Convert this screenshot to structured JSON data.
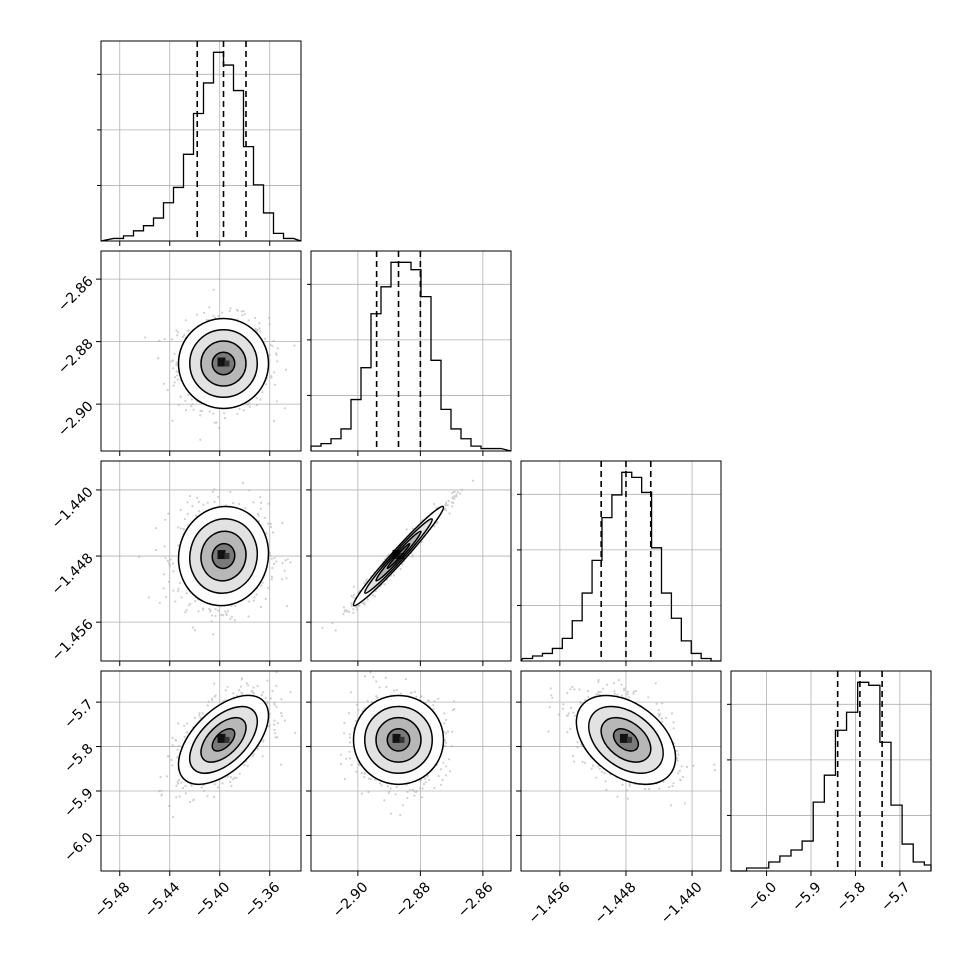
{
  "chart_data": {
    "type": "corner",
    "title": "",
    "grid": true,
    "parameters": [
      {
        "index": 0,
        "range": [
          -5.495,
          -5.335
        ],
        "ticks": [
          -5.48,
          -5.44,
          -5.4,
          -5.36
        ],
        "tick_labels": [
          "−5.48",
          "−5.44",
          "−5.40",
          "−5.36"
        ],
        "quantiles": {
          "q16": -5.418,
          "q50": -5.397,
          "q84": -5.379
        }
      },
      {
        "index": 1,
        "range": [
          -2.915,
          -2.851
        ],
        "ticks": [
          -2.9,
          -2.88,
          -2.86
        ],
        "tick_labels": [
          "−2.90",
          "−2.88",
          "−2.86"
        ],
        "quantiles": {
          "q16": -2.894,
          "q50": -2.887,
          "q84": -2.88
        }
      },
      {
        "index": 2,
        "range": [
          -1.4607,
          -1.4365
        ],
        "ticks": [
          -1.456,
          -1.448,
          -1.44
        ],
        "tick_labels": [
          "−1.456",
          "−1.448",
          "−1.440"
        ],
        "quantiles": {
          "q16": -1.451,
          "q50": -1.448,
          "q84": -1.445
        }
      },
      {
        "index": 3,
        "range": [
          -6.08,
          -5.63
        ],
        "ticks": [
          -6.0,
          -5.9,
          -5.8,
          -5.7
        ],
        "tick_labels": [
          "−6.0",
          "−5.9",
          "−5.8",
          "−5.7"
        ],
        "quantiles": {
          "q16": -5.84,
          "q50": -5.79,
          "q84": -5.74
        }
      }
    ],
    "histograms": [
      {
        "param": 0,
        "bin_centers": [
          -5.481,
          -5.473,
          -5.465,
          -5.457,
          -5.449,
          -5.441,
          -5.433,
          -5.425,
          -5.417,
          -5.409,
          -5.401,
          -5.393,
          -5.385,
          -5.377,
          -5.369,
          -5.361,
          -5.353,
          -5.345
        ],
        "counts": [
          1,
          2,
          4,
          6,
          9,
          15,
          21,
          34,
          50,
          62,
          74,
          69,
          59,
          37,
          22,
          11,
          3,
          1
        ]
      },
      {
        "param": 1,
        "bin_centers": [
          -2.9134,
          -2.9102,
          -2.907,
          -2.9038,
          -2.9006,
          -2.8974,
          -2.8942,
          -2.891,
          -2.8878,
          -2.8846,
          -2.8814,
          -2.8782,
          -2.875,
          -2.8718,
          -2.8686,
          -2.8654,
          -2.8622,
          -2.859,
          -2.8558
        ],
        "counts": [
          2,
          3,
          5,
          9,
          21,
          34,
          56,
          67,
          77,
          77,
          74,
          63,
          37,
          17,
          9,
          5,
          2,
          1,
          1
        ]
      },
      {
        "param": 2,
        "bin_centers": [
          -1.4599,
          -1.4587,
          -1.4575,
          -1.4563,
          -1.4551,
          -1.4539,
          -1.4527,
          -1.4515,
          -1.4503,
          -1.4491,
          -1.4479,
          -1.4467,
          -1.4455,
          -1.4443,
          -1.4431,
          -1.4419,
          -1.4407,
          -1.4395,
          -1.4383,
          -1.4371
        ],
        "counts": [
          1,
          2,
          3,
          5,
          9,
          16,
          27,
          40,
          57,
          66,
          75,
          73,
          67,
          45,
          27,
          17,
          8,
          3,
          1,
          0
        ]
      },
      {
        "param": 3,
        "bin_centers": [
          -6.0575,
          -6.0325,
          -6.0075,
          -5.9825,
          -5.9575,
          -5.9325,
          -5.9075,
          -5.8825,
          -5.8575,
          -5.8325,
          -5.8075,
          -5.7825,
          -5.7575,
          -5.7325,
          -5.7075,
          -5.6825,
          -5.6575,
          -5.6325
        ],
        "counts": [
          0,
          1,
          1,
          3,
          5,
          7,
          10,
          23,
          32,
          47,
          53,
          63,
          62,
          43,
          22,
          9,
          3,
          2
        ]
      }
    ],
    "scatter_panels": [
      {
        "x": 0,
        "y": 1,
        "center": [
          -5.397,
          -2.887
        ],
        "sigma": [
          0.018,
          0.0072
        ],
        "rho": 0.0,
        "levels": [
          0.5,
          1.0,
          1.5,
          2.0
        ]
      },
      {
        "x": 0,
        "y": 2,
        "center": [
          -5.397,
          -1.448
        ],
        "sigma": [
          0.018,
          0.003
        ],
        "rho": 0.05,
        "levels": [
          0.5,
          1.0,
          1.5,
          2.0
        ]
      },
      {
        "x": 1,
        "y": 2,
        "center": [
          -2.887,
          -1.448
        ],
        "sigma": [
          0.0072,
          0.003
        ],
        "rho": 0.98,
        "levels": [
          0.5,
          1.0,
          1.5,
          2.0
        ]
      },
      {
        "x": 0,
        "y": 3,
        "center": [
          -5.397,
          -5.785
        ],
        "sigma": [
          0.018,
          0.05
        ],
        "rho": 0.55,
        "levels": [
          0.5,
          1.0,
          1.5,
          2.0
        ]
      },
      {
        "x": 1,
        "y": 3,
        "center": [
          -2.887,
          -5.785
        ],
        "sigma": [
          0.0072,
          0.05
        ],
        "rho": 0.0,
        "levels": [
          0.5,
          1.0,
          1.5,
          2.0
        ]
      },
      {
        "x": 2,
        "y": 3,
        "center": [
          -1.448,
          -5.785
        ],
        "sigma": [
          0.003,
          0.05
        ],
        "rho": -0.4,
        "levels": [
          0.5,
          1.0,
          1.5,
          2.0
        ]
      }
    ]
  }
}
